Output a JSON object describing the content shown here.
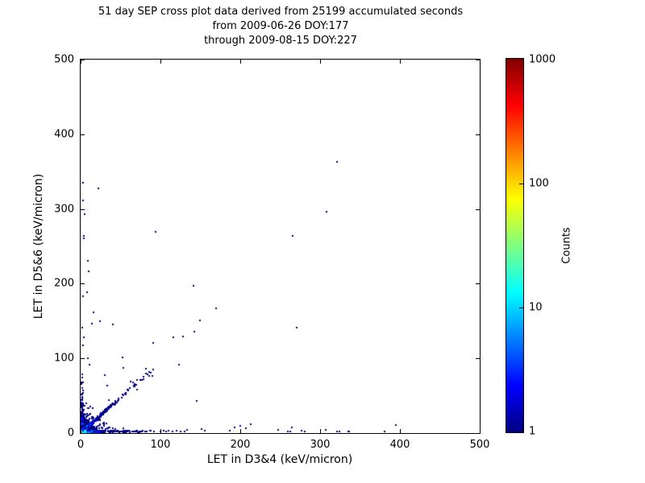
{
  "figure": {
    "background": "#ffffff",
    "frame_color": "#000000"
  },
  "chart_data": {
    "type": "heatmap",
    "title_lines": [
      "51 day SEP cross plot data derived from 25199 accumulated seconds",
      "from 2009-06-26 DOY:177",
      "through 2009-08-15 DOY:227"
    ],
    "xlabel": "LET in D3&4 (keV/micron)",
    "ylabel": "LET in D5&6 (keV/micron)",
    "xlim": [
      0,
      500
    ],
    "ylim": [
      0,
      500
    ],
    "xticks": [
      0,
      100,
      200,
      300,
      400,
      500
    ],
    "yticks": [
      0,
      100,
      200,
      300,
      400,
      500
    ],
    "grid": false,
    "marker_size_px": 2,
    "base_point_color": "#000080",
    "colorbar": {
      "label": "Counts",
      "scale": "log",
      "range": [
        1,
        1000
      ],
      "ticks": [
        1,
        10,
        100,
        1000
      ],
      "colormap": "jet",
      "gradient_stops": [
        "#000080",
        "#0000ff",
        "#0080ff",
        "#00ffff",
        "#80ff80",
        "#ffff00",
        "#ff8000",
        "#ff0000",
        "#800000"
      ]
    },
    "outlier_points": [
      [
        21,
        326,
        1
      ],
      [
        2,
        334,
        1
      ],
      [
        2,
        310,
        1
      ],
      [
        4,
        292,
        1
      ],
      [
        3,
        263,
        1
      ],
      [
        3,
        260,
        1
      ],
      [
        93,
        268,
        1
      ],
      [
        8,
        230,
        1
      ],
      [
        9,
        216,
        1
      ],
      [
        320,
        362,
        1
      ],
      [
        307,
        295,
        1
      ],
      [
        265,
        263,
        1
      ],
      [
        270,
        140,
        1
      ],
      [
        140,
        196,
        1
      ],
      [
        7,
        188,
        1
      ],
      [
        2,
        182,
        1
      ],
      [
        169,
        166,
        1
      ],
      [
        15,
        161,
        1
      ],
      [
        23,
        149,
        1
      ],
      [
        13,
        145,
        1
      ],
      [
        39,
        144,
        1
      ],
      [
        148,
        150,
        1
      ],
      [
        141,
        135,
        1
      ],
      [
        127,
        128,
        1
      ],
      [
        115,
        127,
        1
      ],
      [
        90,
        120,
        1
      ],
      [
        3,
        127,
        1
      ],
      [
        1,
        140,
        1
      ],
      [
        8,
        99,
        1
      ],
      [
        52,
        100,
        1
      ],
      [
        10,
        90,
        1
      ],
      [
        53,
        86,
        1
      ],
      [
        122,
        90,
        1
      ],
      [
        29,
        76,
        1
      ],
      [
        81,
        85,
        1
      ],
      [
        81,
        79,
        1
      ],
      [
        85,
        75,
        1
      ],
      [
        89,
        75,
        1
      ],
      [
        32,
        62,
        1
      ],
      [
        62,
        68,
        1
      ],
      [
        65,
        67,
        1
      ],
      [
        66,
        63,
        1
      ],
      [
        70,
        70,
        1
      ],
      [
        61,
        59,
        1
      ],
      [
        70,
        57,
        1
      ],
      [
        144,
        42,
        1
      ],
      [
        155,
        2,
        1
      ],
      [
        199,
        9,
        2
      ],
      [
        212,
        11,
        1
      ],
      [
        334,
        1,
        1
      ],
      [
        380,
        1,
        1
      ],
      [
        394,
        10,
        1
      ],
      [
        91,
        1,
        1
      ],
      [
        99,
        1,
        1
      ],
      [
        103,
        2,
        1
      ],
      [
        106,
        1,
        1
      ],
      [
        109,
        2,
        1
      ],
      [
        114,
        1,
        1
      ],
      [
        119,
        2,
        1
      ],
      [
        124,
        1,
        1
      ],
      [
        129,
        1,
        1
      ],
      [
        132,
        3,
        1
      ],
      [
        150,
        4,
        1
      ],
      [
        186,
        2,
        1
      ],
      [
        192,
        6,
        1
      ],
      [
        206,
        5,
        1
      ],
      [
        246,
        3,
        1
      ],
      [
        259,
        1,
        1
      ],
      [
        262,
        1,
        1
      ],
      [
        264,
        6,
        1
      ],
      [
        276,
        2,
        1
      ],
      [
        280,
        1,
        1
      ],
      [
        306,
        3,
        1
      ],
      [
        320,
        1,
        1
      ],
      [
        323,
        1,
        1
      ],
      [
        335,
        1,
        1
      ]
    ],
    "bands": {
      "origin_cluster": {
        "extent": 30,
        "cell": 1.5,
        "peak_count": 200,
        "falloff": 4.2
      },
      "halo": {
        "points": 300,
        "scale": 9,
        "max": 85
      },
      "diagonal": {
        "points": 170,
        "decay": 26,
        "max": 95,
        "slope": 0.95,
        "spread": 2.2,
        "blob_points": 45,
        "blob_center": 30,
        "blob_width": 14
      },
      "bottom": {
        "points": 240,
        "decay": 34,
        "max": 92,
        "thickness": 2.4
      },
      "left": {
        "points": 140,
        "decay": 24,
        "max": 132,
        "thickness": 2.4
      }
    },
    "seed": 20090626
  }
}
